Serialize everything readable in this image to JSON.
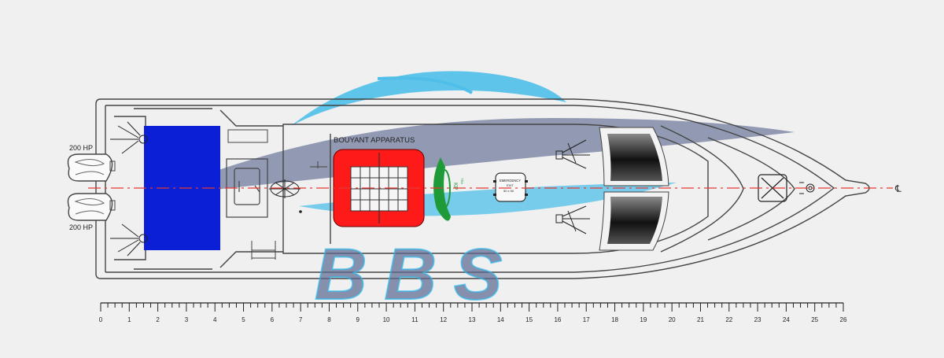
{
  "labels": {
    "engine_top": "200 HP",
    "engine_bottom": "200 HP",
    "bouyant": "BOUYANT APPARATUS",
    "emergency_1": "EMERGENCY",
    "emergency_2": "EXIT",
    "emergency_3": "50 x 50",
    "centerline": "℄",
    "kp_logo": "KP",
    "kp_sub": "TRA"
  },
  "watermark": {
    "text": "BBS"
  },
  "scale": {
    "ticks": [
      "0",
      "1",
      "2",
      "3",
      "4",
      "5",
      "6",
      "7",
      "8",
      "9",
      "10",
      "11",
      "12",
      "13",
      "14",
      "15",
      "16",
      "17",
      "18",
      "19",
      "20",
      "21",
      "22",
      "23",
      "24",
      "25",
      "26"
    ]
  },
  "colors": {
    "background": "#f0f0f0",
    "outline": "#444444",
    "centerline": "#e53935",
    "deck_blue": "#0a1fd6",
    "liferaft_red": "#ff1a1a",
    "watermark_blue": "#33b7e8",
    "watermark_gray": "#5d6a90"
  }
}
